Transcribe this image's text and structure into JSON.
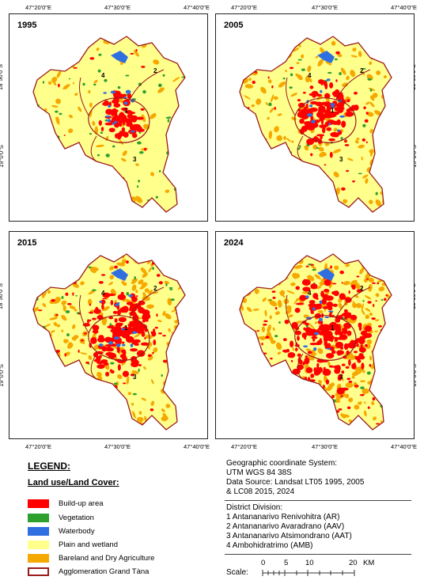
{
  "maps": [
    {
      "year": "1995",
      "period": 0
    },
    {
      "year": "2005",
      "period": 1
    },
    {
      "year": "2015",
      "period": 2
    },
    {
      "year": "2024",
      "period": 3
    }
  ],
  "coords": {
    "lon": [
      "47°20'0\"E",
      "47°30'0\"E",
      "47°40'0\"E"
    ],
    "lat": [
      "18°50'0\"S",
      "19°0'0\"S"
    ]
  },
  "district_labels": [
    "1",
    "2",
    "3",
    "4"
  ],
  "legend": {
    "title": "LEGEND:",
    "subtitle": "Land use/Land Cover:",
    "items": [
      {
        "label": "Build-up area",
        "color": "#ff0000"
      },
      {
        "label": "Vegetation",
        "color": "#2ea02e"
      },
      {
        "label": "Waterbody",
        "color": "#2f6fe0"
      },
      {
        "label": "Plain and wetland",
        "color": "#ffff8c"
      },
      {
        "label": "Bareland and Dry Agriculture",
        "color": "#f5a800"
      },
      {
        "label": "Agglomeration Grand Tàna",
        "color": "#9b1b1b"
      }
    ]
  },
  "info": {
    "gcs_line1": "Geographic coordinate System:",
    "gcs_line2": "UTM WGS 84 38S",
    "source_line1": "Data Source: Landsat LT05 1995, 2005",
    "source_line2": "& LC08 2015, 2024",
    "district_title": "District Division:",
    "districts": [
      "1  Antananarivo Renivohitra (AR)",
      "2  Antananarivo Avaradrano (AAV)",
      "3  Antananarivo Atsimondrano (AAT)",
      "4  Ambohidratrimo (AMB)"
    ]
  },
  "scale": {
    "label": "Scale:",
    "ticks": [
      "0",
      "5",
      "10",
      "20"
    ],
    "unit": "KM"
  }
}
